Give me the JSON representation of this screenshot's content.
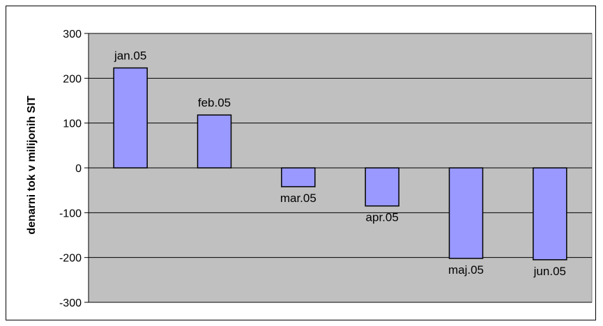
{
  "chart_data": {
    "type": "bar",
    "categories": [
      "jan.05",
      "feb.05",
      "mar.05",
      "apr.05",
      "maj.05",
      "jun.05"
    ],
    "values": [
      223,
      118,
      -42,
      -85,
      -202,
      -205
    ],
    "data_labels": [
      "jan.05",
      "feb.05",
      "mar.05",
      "apr.05",
      "maj.05",
      "jun.05"
    ],
    "ylabel": "denarni tok v milijonih SIT",
    "xlabel": "",
    "title": "",
    "ylim": [
      -300,
      300
    ],
    "yticks": [
      300,
      200,
      100,
      0,
      -100,
      -200,
      -300
    ],
    "grid": true,
    "legend": "none",
    "colors": {
      "bar_fill": "#9999ff",
      "bar_stroke": "#000000",
      "plot_bg": "#c0c0c0",
      "gridline": "#000000"
    }
  }
}
